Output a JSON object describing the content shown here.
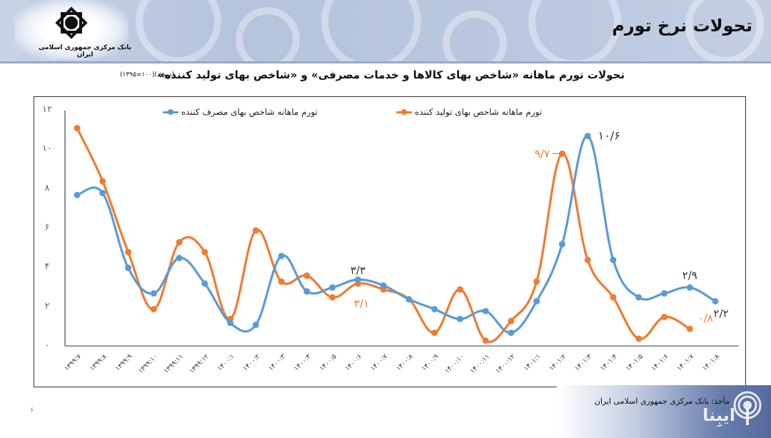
{
  "header": {
    "page_title": "تحولات نرخ تورم",
    "bank_name": "بانک مرکزی جمهوری اسلامی ایران",
    "logo_icon": "central-bank-logo-icon"
  },
  "chart": {
    "title": "تحولات تورم ماهانه «شاخص بهای کالاها و خدمات مصرفی» و «شاخص بهای تولید کننده»",
    "title_note": "(درصد)(۱۰۰=۱۳۹۵)"
  },
  "legend": {
    "cpi_label": "تورم ماهانه شاخص بهای مصرف کننده",
    "ppi_label": "تورم ماهانه شاخص بهای تولید کننده"
  },
  "annotations": {
    "cpi_peak": "۱۰/۶",
    "ppi_peak": "۹/۷",
    "cpi_mid": "۳/۳",
    "ppi_mid": "۳/۱",
    "cpi_prev_last": "۲/۹",
    "cpi_last": "۲/۲",
    "ppi_last": "۰/۸"
  },
  "footer": {
    "source": "مأخذ: بانک مرکزی جمهوری اسلامی ایران",
    "brand": "ایبِنا",
    "page_number": "۶"
  },
  "colors": {
    "cpi": "#5b9bd5",
    "ppi": "#ed7d31"
  },
  "chart_data": {
    "type": "line",
    "title": "تحولات تورم ماهانه «شاخص بهای کالاها و خدمات مصرفی» و «شاخص بهای تولید کننده» (درصد)(۱۰۰=۱۳۹۵)",
    "xlabel": "",
    "ylabel": "",
    "ylim": [
      0,
      12
    ],
    "yticks": [
      "۰",
      "۲",
      "۴",
      "۶",
      "۸",
      "۱۰",
      "۱۲"
    ],
    "ytick_values": [
      0,
      2,
      4,
      6,
      8,
      10,
      12
    ],
    "grid": false,
    "legend_position": "top",
    "categories": [
      "۱۳۹۹:۷",
      "۱۳۹۹:۸",
      "۱۳۹۹:۹",
      "۱۳۹۹:۱۰",
      "۱۳۹۹:۱۱",
      "۱۳۹۹:۱۲",
      "۱۴۰۰:۱",
      "۱۴۰۰:۲",
      "۱۴۰۰:۳",
      "۱۴۰۰:۴",
      "۱۴۰۰:۵",
      "۱۴۰۰:۶",
      "۱۴۰۰:۷",
      "۱۴۰۰:۸",
      "۱۴۰۰:۹",
      "۱۴۰۰:۱۰",
      "۱۴۰۰:۱۱",
      "۱۴۰۰:۱۲",
      "۱۴۰۱:۱",
      "۱۴۰۱:۲",
      "۱۴۰۱:۳",
      "۱۴۰۱:۴",
      "۱۴۰۱:۵",
      "۱۴۰۱:۶",
      "۱۴۰۱:۷",
      "۱۴۰۱:۸"
    ],
    "series": [
      {
        "name": "تورم ماهانه شاخص بهای مصرف کننده",
        "color": "#5b9bd5",
        "values": [
          7.6,
          7.7,
          3.9,
          2.6,
          4.4,
          3.1,
          1.1,
          1.0,
          4.5,
          2.7,
          2.9,
          3.3,
          3.0,
          2.3,
          1.8,
          1.3,
          1.7,
          0.6,
          2.2,
          5.1,
          10.6,
          4.3,
          2.4,
          2.6,
          2.9,
          2.2
        ]
      },
      {
        "name": "تورم ماهانه شاخص بهای تولید کننده",
        "color": "#ed7d31",
        "values": [
          11.0,
          8.3,
          4.7,
          1.8,
          5.2,
          4.7,
          1.3,
          5.8,
          3.2,
          3.5,
          2.4,
          3.1,
          2.8,
          2.3,
          0.6,
          2.8,
          0.2,
          1.2,
          3.2,
          9.7,
          4.3,
          2.4,
          0.3,
          1.4,
          0.8,
          null
        ]
      }
    ],
    "data_labels": [
      {
        "series": 0,
        "category": "۱۴۰۱:۳",
        "text": "۱۰/۶"
      },
      {
        "series": 1,
        "category": "۱۴۰۱:۲",
        "text": "۹/۷"
      },
      {
        "series": 0,
        "category": "۱۴۰۰:۶",
        "text": "۳/۳"
      },
      {
        "series": 1,
        "category": "۱۴۰۰:۶",
        "text": "۳/۱"
      },
      {
        "series": 0,
        "category": "۱۴۰۱:۷",
        "text": "۲/۹"
      },
      {
        "series": 0,
        "category": "۱۴۰۱:۸",
        "text": "۲/۲"
      },
      {
        "series": 1,
        "category": "۱۴۰۱:۷",
        "text": "۰/۸"
      }
    ]
  }
}
